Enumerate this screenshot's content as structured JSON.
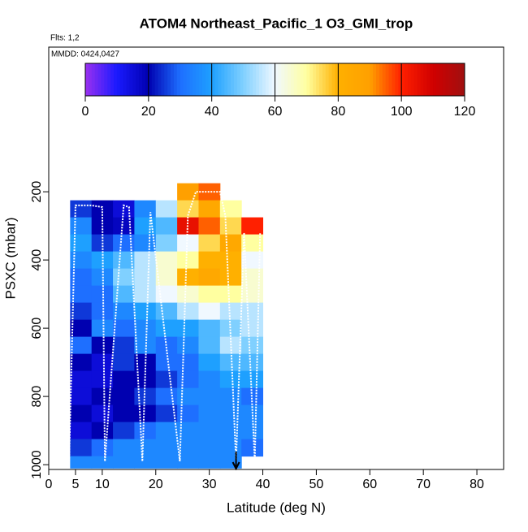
{
  "chart_data": {
    "type": "heatmap",
    "title": "ATOM4 Northeast_Pacific_1 O3_GMI_trop",
    "subtitle": "Flts: 1,2",
    "annotation": "MMDD: 0424,0427",
    "x_label": "Latitude (deg N)",
    "y_label": "PSXC (mbar)",
    "xlim": [
      0,
      85
    ],
    "xticks": [
      0,
      5,
      10,
      20,
      30,
      40,
      50,
      60,
      70,
      80
    ],
    "ylim": [
      1014,
      -224
    ],
    "yticks": [
      200,
      400,
      600,
      800,
      1000
    ],
    "lat_edges": [
      4,
      8,
      12,
      16,
      20,
      24,
      28,
      32,
      36,
      40
    ],
    "p_edges": [
      175,
      225,
      275,
      325,
      375,
      425,
      475,
      525,
      575,
      625,
      675,
      725,
      775,
      825,
      875,
      925,
      975,
      1010
    ],
    "values": [
      [
        null,
        null,
        null,
        null,
        null,
        90,
        95,
        null,
        null
      ],
      [
        25,
        20,
        15,
        35,
        55,
        75,
        85,
        70,
        null
      ],
      [
        35,
        20,
        18,
        40,
        45,
        105,
        95,
        75,
        100
      ],
      [
        40,
        25,
        30,
        35,
        50,
        60,
        75,
        85,
        70
      ],
      [
        35,
        40,
        45,
        55,
        65,
        70,
        80,
        80,
        60
      ],
      [
        30,
        35,
        50,
        55,
        65,
        80,
        85,
        80,
        65
      ],
      [
        30,
        30,
        45,
        55,
        60,
        65,
        70,
        70,
        65
      ],
      [
        25,
        30,
        35,
        40,
        45,
        55,
        60,
        55,
        55
      ],
      [
        20,
        35,
        30,
        35,
        40,
        40,
        45,
        50,
        55
      ],
      [
        30,
        20,
        25,
        35,
        30,
        35,
        45,
        55,
        50
      ],
      [
        20,
        15,
        25,
        20,
        30,
        30,
        40,
        45,
        45
      ],
      [
        15,
        15,
        20,
        20,
        25,
        30,
        35,
        40,
        40
      ],
      [
        15,
        20,
        20,
        25,
        30,
        35,
        35,
        35,
        30
      ],
      [
        20,
        15,
        20,
        20,
        25,
        30,
        35,
        35,
        35
      ],
      [
        15,
        20,
        25,
        30,
        35,
        35,
        35,
        35,
        35
      ],
      [
        25,
        30,
        35,
        35,
        35,
        35,
        35,
        35,
        30
      ],
      [
        35,
        35,
        35,
        35,
        35,
        35,
        35,
        35,
        null
      ]
    ],
    "track": {
      "color": "#ffffff",
      "x": [
        3.8,
        5,
        8,
        10,
        10.5,
        14,
        15,
        17.5,
        19,
        24.5,
        26,
        27.5,
        32,
        33,
        35,
        36.5,
        38.5,
        39.5
      ],
      "y": [
        990,
        240,
        240,
        245,
        990,
        240,
        245,
        990,
        260,
        990,
        270,
        200,
        200,
        270,
        990,
        320,
        990,
        320
      ]
    },
    "colorbar": {
      "lim": [
        0,
        120
      ],
      "ticks": [
        0,
        20,
        40,
        60,
        80,
        100,
        120
      ],
      "colors": [
        "#9a30f0",
        "#1a1aff",
        "#0000b0",
        "#1e6fff",
        "#1ea0ff",
        "#80d0ff",
        "#f0f8ff",
        "#ffffa0",
        "#ffb000",
        "#ffa000",
        "#ff2000",
        "#d00000",
        "#a01010"
      ]
    }
  }
}
